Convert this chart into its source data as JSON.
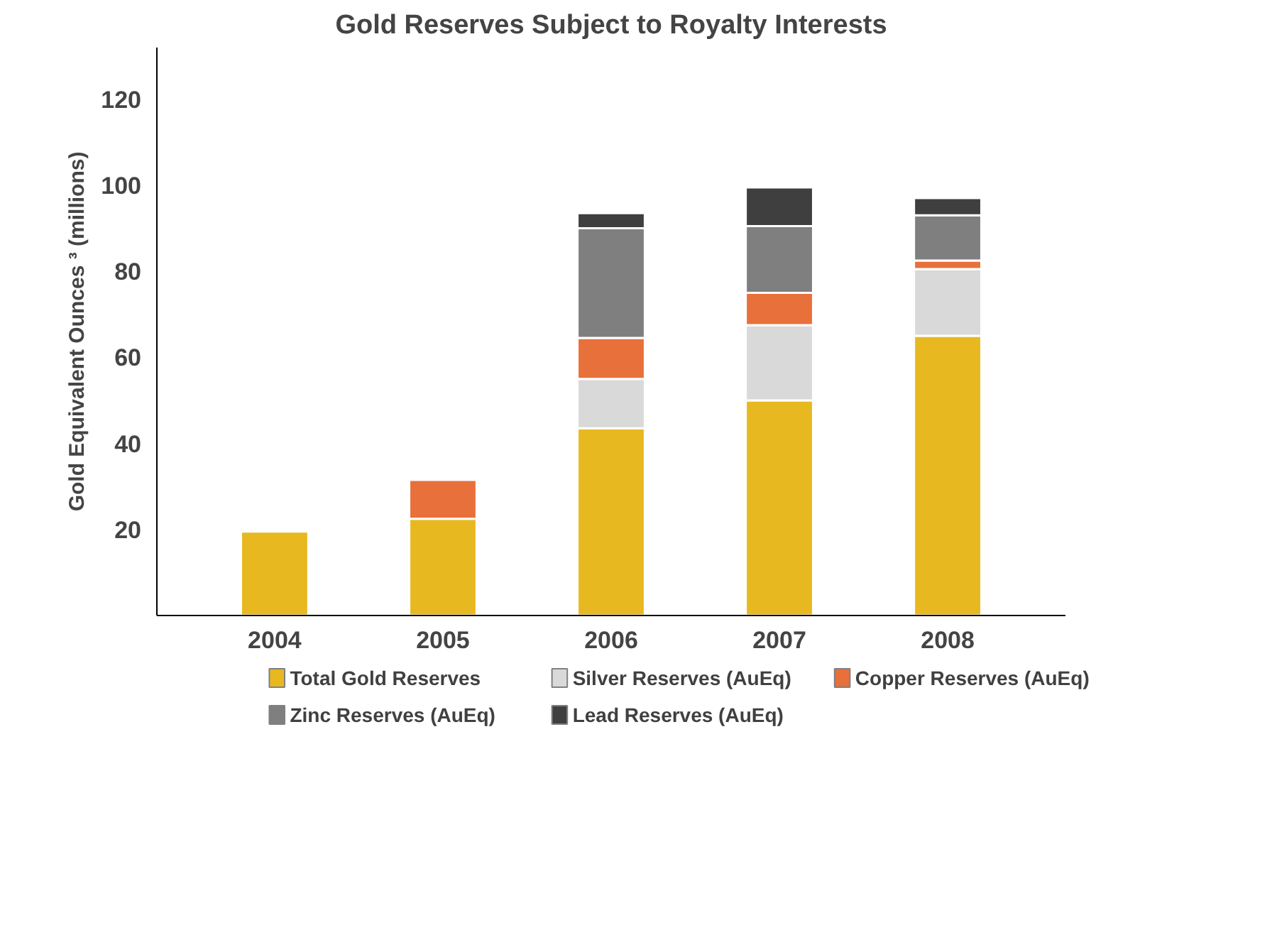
{
  "chart_data": {
    "type": "bar",
    "title": "Gold Reserves Subject to Royalty Interests",
    "ylabel": "Gold Equivalent Ounces ³ (millions)",
    "categories": [
      "2004",
      "2005",
      "2006",
      "2007",
      "2008"
    ],
    "stacked": true,
    "ylim": [
      0,
      132
    ],
    "yticks": [
      20,
      40,
      60,
      80,
      100,
      120
    ],
    "grid": false,
    "legend": "bottom",
    "series": [
      {
        "name": "Total Gold Reserves",
        "color": "#e8b820",
        "values": [
          19.5,
          22.5,
          43.5,
          50,
          65
        ]
      },
      {
        "name": "Silver Reserves (AuEq)",
        "color": "#d9d9d9",
        "values": [
          null,
          null,
          11.5,
          17.5,
          15.5
        ]
      },
      {
        "name": "Copper Reserves (AuEq)",
        "color": "#e8703a",
        "values": [
          null,
          9,
          9.5,
          7.5,
          2
        ]
      },
      {
        "name": "Zinc Reserves (AuEq)",
        "color": "#7f7f7f",
        "values": [
          null,
          null,
          25.5,
          15.5,
          10.5
        ]
      },
      {
        "name": "Lead Reserves (AuEq)",
        "color": "#3f3f3f",
        "values": [
          null,
          null,
          3.5,
          9,
          4
        ]
      }
    ]
  }
}
